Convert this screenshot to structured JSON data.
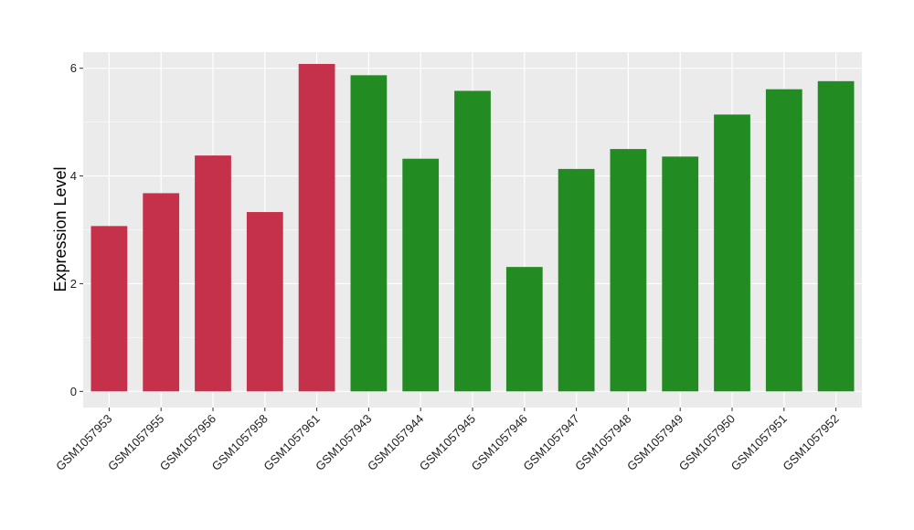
{
  "chart_data": {
    "type": "bar",
    "title": "",
    "xlabel": "",
    "ylabel": "Expression Level",
    "ylim": [
      -0.3,
      6.3
    ],
    "yticks": [
      0,
      2,
      4,
      6
    ],
    "grid": true,
    "legend": "none",
    "colors": {
      "group_1": "#c5314a",
      "group_2": "#228b22",
      "panel_background": "#ebebeb",
      "grid": "#ffffff"
    },
    "categories": [
      "GSM1057953",
      "GSM1057955",
      "GSM1057956",
      "GSM1057958",
      "GSM1057961",
      "GSM1057943",
      "GSM1057944",
      "GSM1057945",
      "GSM1057946",
      "GSM1057947",
      "GSM1057948",
      "GSM1057949",
      "GSM1057950",
      "GSM1057951",
      "GSM1057952"
    ],
    "values": [
      3.07,
      3.68,
      4.38,
      3.33,
      6.08,
      5.87,
      4.32,
      5.58,
      2.31,
      4.13,
      4.5,
      4.36,
      5.14,
      5.61,
      5.76
    ],
    "bar_groups": [
      "group_1",
      "group_1",
      "group_1",
      "group_1",
      "group_1",
      "group_2",
      "group_2",
      "group_2",
      "group_2",
      "group_2",
      "group_2",
      "group_2",
      "group_2",
      "group_2",
      "group_2"
    ]
  }
}
